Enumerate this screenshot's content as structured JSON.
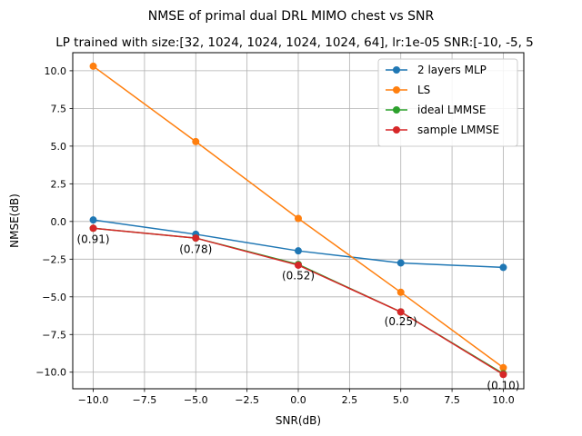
{
  "chart_data": {
    "type": "line",
    "title": "NMSE of primal dual DRL MIMO chest vs SNR",
    "subtitle": "LP trained with size:[32, 1024, 1024, 1024, 1024, 64], lr:1e-05 SNR:[-10, -5, 5",
    "xlabel": "SNR(dB)",
    "ylabel": "NMSE(dB)",
    "xlim": [
      -11,
      11
    ],
    "ylim": [
      -11.1,
      11.2
    ],
    "xticks": [
      -10.0,
      -7.5,
      -5.0,
      -2.5,
      0.0,
      2.5,
      5.0,
      7.5,
      10.0
    ],
    "xtick_labels": [
      "−10.0",
      "−7.5",
      "−5.0",
      "−2.5",
      "0.0",
      "2.5",
      "5.0",
      "7.5",
      "10.0"
    ],
    "yticks": [
      -10.0,
      -7.5,
      -5.0,
      -2.5,
      0.0,
      2.5,
      5.0,
      7.5,
      10.0
    ],
    "ytick_labels": [
      "−10.0",
      "−7.5",
      "−5.0",
      "−2.5",
      "0.0",
      "2.5",
      "5.0",
      "7.5",
      "10.0"
    ],
    "grid": true,
    "legend_position": "top-right",
    "x": [
      -10,
      -5,
      0,
      5,
      10
    ],
    "series": [
      {
        "name": "2 layers MLP",
        "color": "#1f77b4",
        "values": [
          0.1,
          -0.85,
          -1.95,
          -2.75,
          -3.05
        ]
      },
      {
        "name": "LS",
        "color": "#ff7f0e",
        "values": [
          10.3,
          5.3,
          0.2,
          -4.7,
          -9.7
        ]
      },
      {
        "name": "ideal LMMSE",
        "color": "#2ca02c",
        "values": [
          -0.45,
          -1.1,
          -2.85,
          -6.0,
          -10.1
        ]
      },
      {
        "name": "sample LMMSE",
        "color": "#d62728",
        "values": [
          -0.45,
          -1.1,
          -2.9,
          -6.0,
          -10.15
        ]
      }
    ],
    "annotations": [
      {
        "text": "(0.91)",
        "x": -10,
        "y": -1.2
      },
      {
        "text": "(0.78)",
        "x": -5,
        "y": -1.85
      },
      {
        "text": "(0.52)",
        "x": 0,
        "y": -3.6
      },
      {
        "text": "(0.25)",
        "x": 5,
        "y": -6.65
      },
      {
        "text": "(0.10)",
        "x": 10,
        "y": -10.9
      }
    ]
  }
}
